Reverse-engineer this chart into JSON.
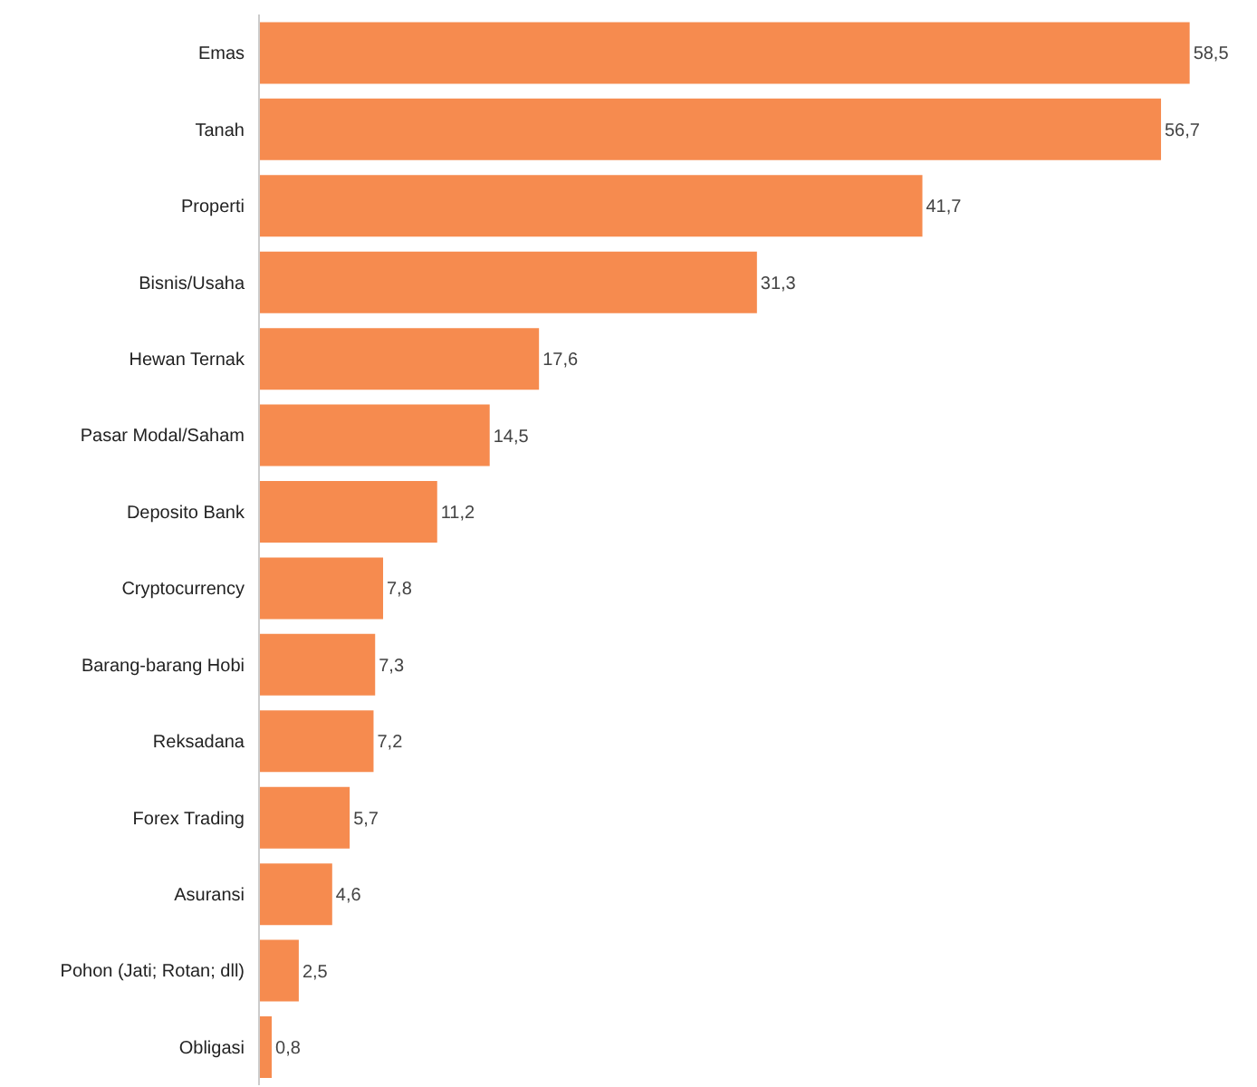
{
  "chart_data": {
    "type": "bar",
    "orientation": "horizontal",
    "categories": [
      "Emas",
      "Tanah",
      "Properti",
      "Bisnis/Usaha",
      "Hewan Ternak",
      "Pasar Modal/Saham",
      "Deposito Bank",
      "Cryptocurrency",
      "Barang-barang Hobi",
      "Reksadana",
      "Forex Trading",
      "Asuransi",
      "Pohon (Jati; Rotan; dll)",
      "Obligasi"
    ],
    "values": [
      58.5,
      56.7,
      41.7,
      31.3,
      17.6,
      14.5,
      11.2,
      7.8,
      7.3,
      7.2,
      5.7,
      4.6,
      2.5,
      0.8
    ],
    "value_labels": [
      "58,5",
      "56,7",
      "41,7",
      "31,3",
      "17,6",
      "14,5",
      "11,2",
      "7,8",
      "7,3",
      "7,2",
      "5,7",
      "4,6",
      "2,5",
      "0,8"
    ],
    "color": "#f68b4f",
    "tick_labels": "y"
  }
}
